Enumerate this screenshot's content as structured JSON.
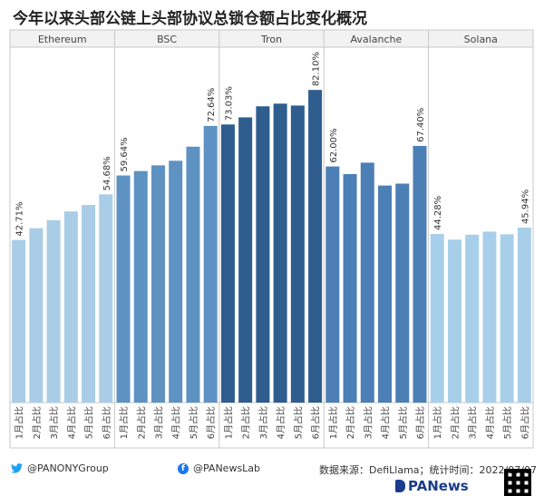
{
  "title": "今年以来头部公链上头部协议总锁仓额占比变化概况",
  "chart_data": {
    "type": "bar",
    "ylim": [
      0,
      100
    ],
    "grid": false,
    "panels": [
      {
        "name": "Ethereum",
        "color": "#a9cde6",
        "categories": [
          "1月占比",
          "2月占比",
          "3月占比",
          "4月占比",
          "5月占比",
          "6月占比"
        ],
        "values": [
          42.71,
          45.8,
          47.9,
          50.2,
          51.9,
          54.68
        ],
        "labels": [
          "42.71%",
          "",
          "",
          "",
          "",
          "54.68%"
        ]
      },
      {
        "name": "BSC",
        "color": "#5e92c2",
        "categories": [
          "1月占比",
          "2月占比",
          "3月占比",
          "4月占比",
          "5月占比",
          "6月占比"
        ],
        "values": [
          59.64,
          60.8,
          62.3,
          63.5,
          67.2,
          72.64
        ],
        "labels": [
          "59.64%",
          "",
          "",
          "",
          "",
          "72.64%"
        ]
      },
      {
        "name": "Tron",
        "color": "#2e5d8e",
        "categories": [
          "1月占比",
          "2月占比",
          "3月占比",
          "4月占比",
          "5月占比",
          "6月占比"
        ],
        "values": [
          73.03,
          74.9,
          77.8,
          78.5,
          78.0,
          82.1
        ],
        "labels": [
          "73.03%",
          "",
          "",
          "",
          "",
          "82.10%"
        ]
      },
      {
        "name": "Avalanche",
        "color": "#4c7fb5",
        "categories": [
          "1月占比",
          "2月占比",
          "3月占比",
          "4月占比",
          "5月占比",
          "6月占比"
        ],
        "values": [
          62.0,
          60.0,
          63.0,
          57.0,
          57.5,
          67.4
        ],
        "labels": [
          "62.00%",
          "",
          "",
          "",
          "",
          "67.40%"
        ]
      },
      {
        "name": "Solana",
        "color": "#a8cfe9",
        "categories": [
          "1月占比",
          "2月占比",
          "3月占比",
          "4月占比",
          "5月占比",
          "6月占比"
        ],
        "values": [
          44.28,
          42.8,
          44.1,
          44.9,
          44.2,
          45.94
        ],
        "labels": [
          "44.28%",
          "",
          "",
          "",
          "",
          "45.94%"
        ]
      }
    ]
  },
  "footer": {
    "twitter": "@PANONYGroup",
    "facebook": "@PANewsLab",
    "source": "数据来源：DefiLlama；统计时间：2022/07/07",
    "logo": "PANews",
    "twitter_icon": "bird-icon",
    "facebook_icon": "facebook-icon",
    "qr_icon": "qr-code-icon"
  }
}
